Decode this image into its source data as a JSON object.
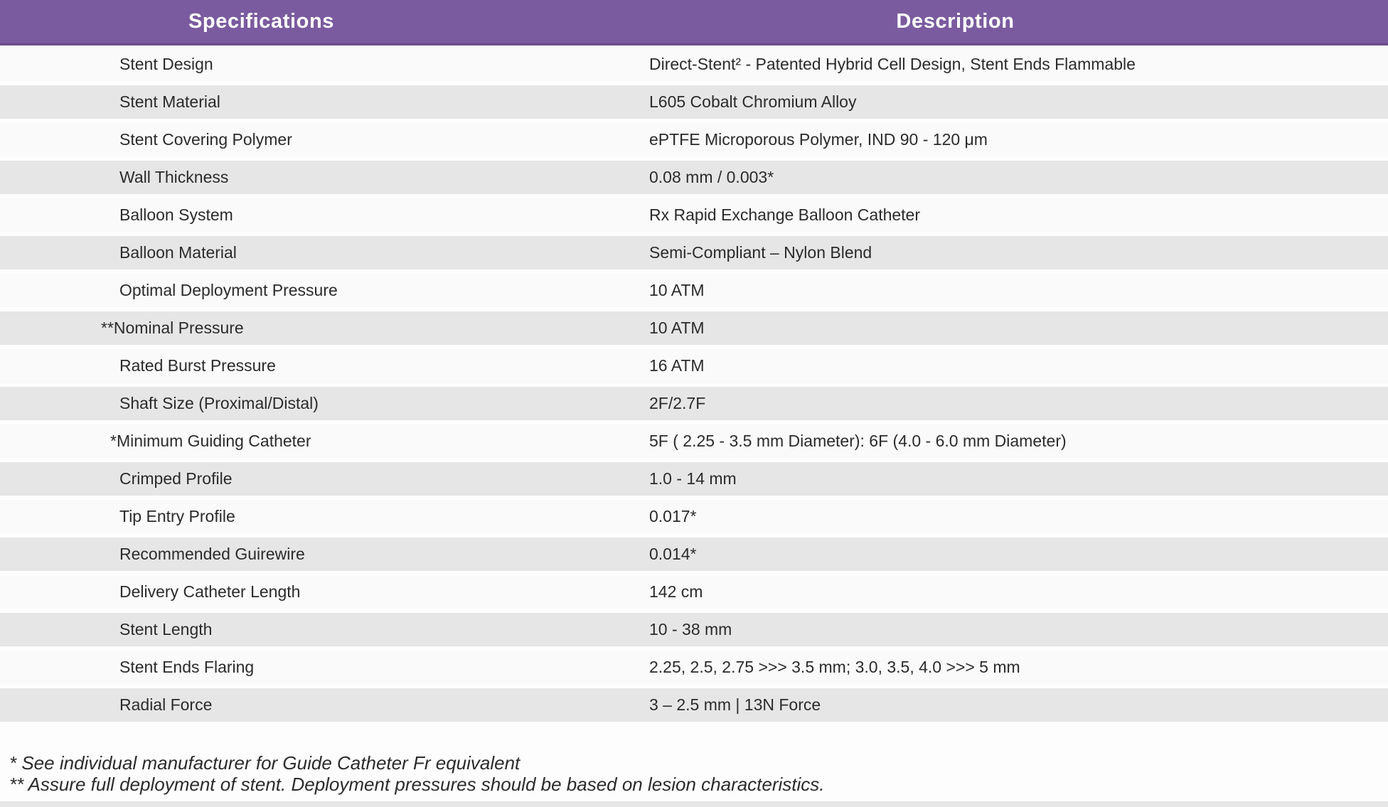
{
  "table": {
    "headers": {
      "spec": "Specifications",
      "desc": "Description"
    },
    "rows": [
      {
        "spec": "Stent Design",
        "desc": "Direct-Stent² - Patented Hybrid Cell Design, Stent Ends Flammable"
      },
      {
        "spec": "Stent Material",
        "desc": "L605 Cobalt Chromium Alloy"
      },
      {
        "spec": "Stent Covering Polymer",
        "desc": "ePTFE Microporous Polymer, IND 90 - 120 μm"
      },
      {
        "spec": "Wall Thickness",
        "desc": "0.08 mm / 0.003*"
      },
      {
        "spec": "Balloon System",
        "desc": "Rx Rapid Exchange Balloon Catheter"
      },
      {
        "spec": "Balloon Material",
        "desc": "Semi-Compliant – Nylon Blend"
      },
      {
        "spec": "Optimal Deployment Pressure",
        "desc": "10 ATM"
      },
      {
        "spec": "**Nominal Pressure",
        "desc": "10 ATM"
      },
      {
        "spec": "Rated Burst Pressure",
        "desc": "16 ATM"
      },
      {
        "spec": "Shaft Size (Proximal/Distal)",
        "desc": "2F/2.7F"
      },
      {
        "spec": "*Minimum Guiding Catheter",
        "desc": "5F ( 2.25 - 3.5 mm Diameter): 6F (4.0 - 6.0 mm Diameter)"
      },
      {
        "spec": "Crimped Profile",
        "desc": "1.0 - 14 mm"
      },
      {
        "spec": "Tip Entry Profile",
        "desc": "0.017*"
      },
      {
        "spec": "Recommended Guirewire",
        "desc": "0.014*"
      },
      {
        "spec": "Delivery Catheter Length",
        "desc": "142 cm"
      },
      {
        "spec": "Stent Length",
        "desc": "10 - 38 mm"
      },
      {
        "spec": "Stent Ends Flaring",
        "desc": "2.25, 2.5, 2.75 >>> 3.5 mm; 3.0, 3.5, 4.0 >>> 5 mm"
      },
      {
        "spec": "Radial Force",
        "desc": "3 – 2.5 mm | 13N Force"
      }
    ]
  },
  "footnotes": [
    "* See individual manufacturer for Guide Catheter Fr equivalent",
    "** Assure full deployment of stent. Deployment pressures should be based on lesion characteristics."
  ],
  "colors": {
    "header_bg": "#7b5b9f",
    "header_edge": "#6b4e8b",
    "header_text": "#ffffff",
    "row_alt": "#e7e6e6",
    "row_light": "#fbfafa",
    "text": "#2b2b2b",
    "page_bg": "#fdfdfd"
  }
}
